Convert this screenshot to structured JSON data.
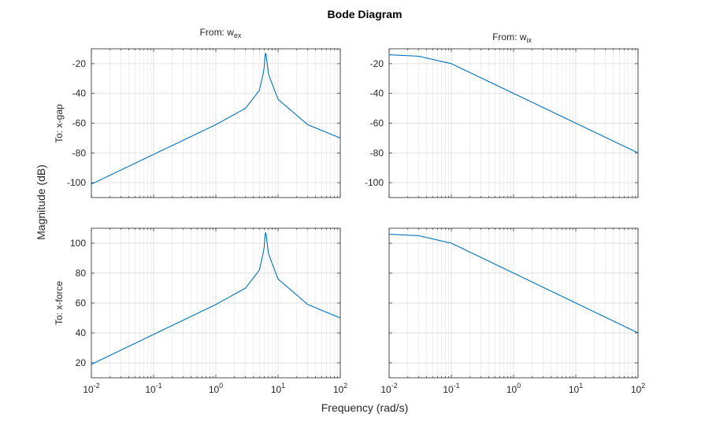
{
  "figure": {
    "title": "Bode Diagram",
    "xlabel": "Frequency (rad/s)",
    "ylabel": "Magnitude (dB)"
  },
  "columns": [
    {
      "prefix": "From: w",
      "sub": "ex"
    },
    {
      "prefix": "From: w",
      "sub": "ix"
    }
  ],
  "rows": [
    {
      "label": "To: x-gap"
    },
    {
      "label": "To: x-force"
    }
  ],
  "colors": {
    "line": "#0072BD",
    "grid": "#DFDFDF",
    "axes": "#262626"
  },
  "chart_data": [
    {
      "type": "line",
      "scale_x": "log",
      "grid": true,
      "from": "w_ex",
      "to": "x-gap",
      "xlim": [
        0.01,
        100
      ],
      "ylim": [
        -110,
        -10
      ],
      "yticks": [
        -100,
        -80,
        -60,
        -40,
        -20
      ],
      "peak": {
        "x": 6.3,
        "y": -13
      },
      "x": [
        0.01,
        0.1,
        1,
        3,
        5,
        6,
        6.3,
        7,
        10,
        30,
        100
      ],
      "y": [
        -101,
        -81,
        -61,
        -50,
        -38,
        -24,
        -13,
        -27,
        -44,
        -61,
        -70
      ]
    },
    {
      "type": "line",
      "scale_x": "log",
      "grid": true,
      "from": "w_ix",
      "to": "x-gap",
      "xlim": [
        0.01,
        100
      ],
      "ylim": [
        -110,
        -10
      ],
      "yticks": [
        -100,
        -80,
        -60,
        -40,
        -20
      ],
      "x": [
        0.01,
        0.03,
        0.1,
        1,
        10,
        100
      ],
      "y": [
        -14,
        -15,
        -20,
        -40,
        -60,
        -80
      ]
    },
    {
      "type": "line",
      "scale_x": "log",
      "grid": true,
      "from": "w_ex",
      "to": "x-force",
      "xlim": [
        0.01,
        100
      ],
      "ylim": [
        10,
        110
      ],
      "xticks": [
        0.01,
        0.1,
        1,
        10,
        100
      ],
      "yticks": [
        20,
        40,
        60,
        80,
        100
      ],
      "peak": {
        "x": 6.3,
        "y": 107
      },
      "x": [
        0.01,
        0.1,
        1,
        3,
        5,
        6,
        6.3,
        7,
        10,
        30,
        100
      ],
      "y": [
        19,
        39,
        59,
        70,
        82,
        96,
        107,
        93,
        76,
        59,
        50
      ]
    },
    {
      "type": "line",
      "scale_x": "log",
      "grid": true,
      "from": "w_ix",
      "to": "x-force",
      "xlim": [
        0.01,
        100
      ],
      "ylim": [
        10,
        110
      ],
      "xticks": [
        0.01,
        0.1,
        1,
        10,
        100
      ],
      "x": [
        0.01,
        0.03,
        0.1,
        1,
        10,
        100
      ],
      "y": [
        106,
        105,
        100,
        80,
        60,
        40
      ]
    }
  ]
}
